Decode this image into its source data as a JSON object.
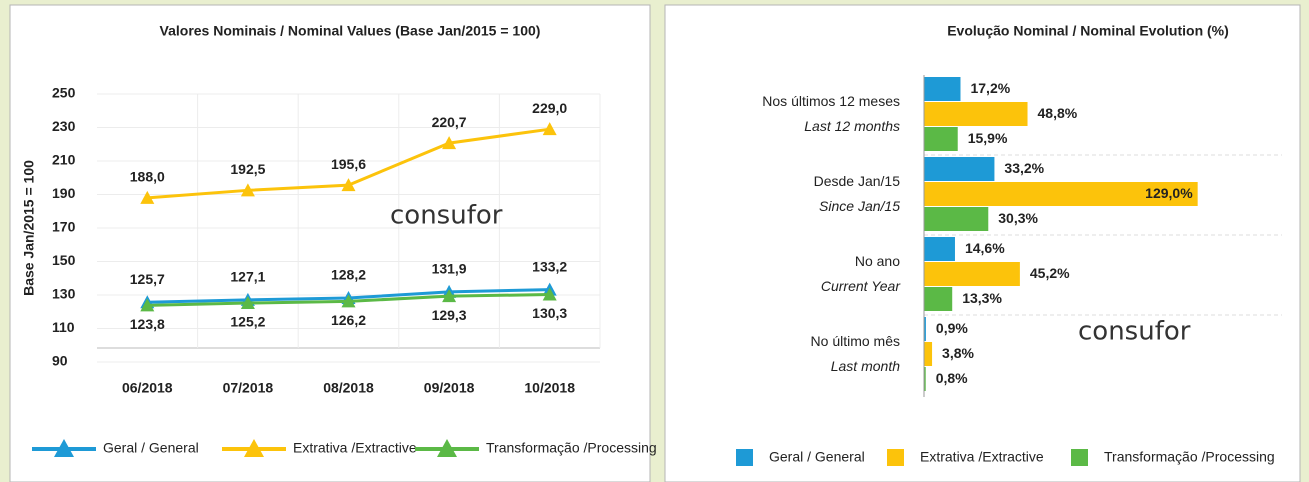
{
  "chart_data": [
    {
      "type": "line",
      "title": "Valores Nominais / Nominal Values (Base Jan/2015 = 100)",
      "ylabel": "Base Jan/2015 = 100",
      "watermark": "consufor",
      "categories": [
        "06/2018",
        "07/2018",
        "08/2018",
        "09/2018",
        "10/2018"
      ],
      "ylim": [
        90,
        250
      ],
      "yticks": [
        90,
        110,
        130,
        150,
        170,
        190,
        210,
        230,
        250
      ],
      "grid": true,
      "series": [
        {
          "name": "Geral / General",
          "color": "#1e9ad6",
          "values": [
            125.7,
            127.1,
            128.2,
            131.9,
            133.2
          ],
          "value_labels": [
            "125,7",
            "127,1",
            "128,2",
            "131,9",
            "133,2"
          ]
        },
        {
          "name": "Extrativa /Extractive",
          "color": "#fcc30b",
          "values": [
            188.0,
            192.5,
            195.6,
            220.7,
            229.0
          ],
          "value_labels": [
            "188,0",
            "192,5",
            "195,6",
            "220,7",
            "229,0"
          ]
        },
        {
          "name": "Transformação /Processing",
          "color": "#5bb946",
          "values": [
            123.8,
            125.2,
            126.2,
            129.3,
            130.3
          ],
          "value_labels": [
            "123,8",
            "125,2",
            "126,2",
            "129,3",
            "130,3"
          ]
        }
      ]
    },
    {
      "type": "hbar",
      "title": "Evolução Nominal / Nominal Evolution (%)",
      "watermark": "consufor",
      "categories": [
        "Nos últimos 12 meses",
        "Desde Jan/15",
        "No ano",
        "No último mês"
      ],
      "categories_en": [
        "Last 12 months",
        "Since Jan/15",
        "Current Year",
        "Last month"
      ],
      "xlim": [
        0,
        140
      ],
      "series": [
        {
          "name": "Geral / General",
          "color": "#1e9ad6",
          "values": [
            17.2,
            33.2,
            14.6,
            0.9
          ],
          "value_labels": [
            "17,2%",
            "33,2%",
            "14,6%",
            "0,9%"
          ]
        },
        {
          "name": "Extrativa /Extractive",
          "color": "#fcc30b",
          "values": [
            48.8,
            129.0,
            45.2,
            3.8
          ],
          "value_labels": [
            "48,8%",
            "129,0%",
            "45,2%",
            "3,8%"
          ]
        },
        {
          "name": "Transformação /Processing",
          "color": "#5bb946",
          "values": [
            15.9,
            30.3,
            13.3,
            0.8
          ],
          "value_labels": [
            "15,9%",
            "30,3%",
            "13,3%",
            "0,8%"
          ]
        }
      ]
    }
  ]
}
